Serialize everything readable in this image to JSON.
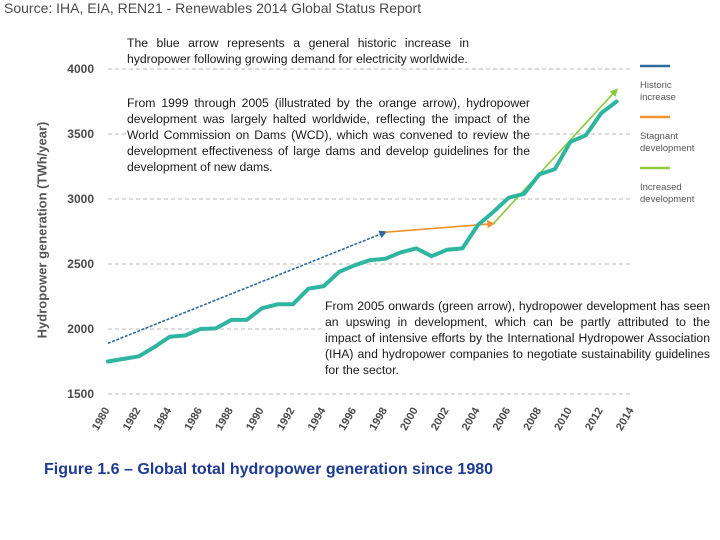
{
  "source": "Source: IHA, EIA, REN21 - Renewables 2014 Global Status Report",
  "notes": {
    "historic": "The blue arrow represents a general historic increase in hydropower following growing demand for electricity worldwide.",
    "stagnant": "From 1999 through 2005 (illustrated by the orange arrow), hydropower development was largely halted worldwide, reflecting the impact of the World Commission on Dams (WCD), which was convened to review the development effectiveness of large dams and develop guidelines for the development of new dams.",
    "increased": "From 2005 onwards (green arrow), hydropower development has seen an upswing in development, which can be partly attributed to the impact of intensive efforts by the International Hydropower Association (IHA) and hydropower companies to negotiate sustainability guidelines for the sector."
  },
  "caption": "Figure 1.6   – Global total hydropower generation since 1980",
  "colors": {
    "series": "#2eb5a0",
    "historic": "#2c6aa0",
    "stagnant": "#f0922e",
    "increased": "#8cc83c",
    "grid": "#b8b8b8"
  },
  "chart_data": {
    "type": "line",
    "title": "",
    "xlabel": "",
    "ylabel": "Hydropower generation (TWh/year)",
    "xlim": [
      1980,
      2014
    ],
    "ylim": [
      1500,
      4000
    ],
    "x_ticks": [
      1980,
      1982,
      1984,
      1986,
      1988,
      1990,
      1992,
      1994,
      1996,
      1998,
      2000,
      2002,
      2004,
      2006,
      2008,
      2010,
      2012,
      2014
    ],
    "y_ticks": [
      1500,
      2000,
      2500,
      3000,
      3500,
      4000
    ],
    "grid": "horizontal dashed",
    "series": [
      {
        "name": "Global hydropower generation",
        "x": [
          1980,
          1981,
          1982,
          1983,
          1984,
          1985,
          1986,
          1987,
          1988,
          1989,
          1990,
          1991,
          1992,
          1993,
          1994,
          1995,
          1996,
          1997,
          1998,
          1999,
          2000,
          2001,
          2002,
          2003,
          2004,
          2005,
          2006,
          2007,
          2008,
          2009,
          2010,
          2011,
          2012,
          2013
        ],
        "values": [
          1750,
          1770,
          1790,
          1860,
          1940,
          1950,
          2000,
          2005,
          2070,
          2070,
          2160,
          2190,
          2190,
          2310,
          2330,
          2440,
          2490,
          2530,
          2540,
          2590,
          2620,
          2560,
          2610,
          2620,
          2800,
          2900,
          3010,
          3040,
          3190,
          3230,
          3440,
          3490,
          3660,
          3750
        ]
      }
    ],
    "trend_arrows": [
      {
        "name": "Historic increase",
        "from": [
          1980,
          1890
        ],
        "to": [
          1998,
          2745
        ]
      },
      {
        "name": "Stagnant development",
        "from": [
          1998,
          2745
        ],
        "to": [
          2005,
          2810
        ]
      },
      {
        "name": "Increased development",
        "from": [
          2005,
          2810
        ],
        "to": [
          2013,
          3840
        ]
      }
    ],
    "legend": [
      "Historic increase",
      "Stagnant development",
      "Increased development"
    ],
    "legend_position": "right"
  }
}
